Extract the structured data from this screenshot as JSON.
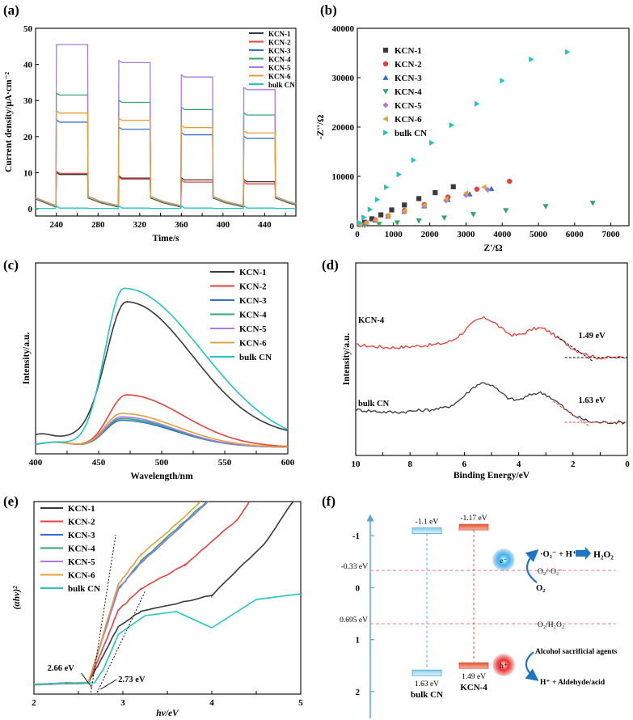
{
  "figure": {
    "panel_labels": [
      "(a)",
      "(b)",
      "(c)",
      "(d)",
      "(e)",
      "(f)"
    ]
  },
  "colors": {
    "KCN-1": "#3a3a3a",
    "KCN-2": "#e8413c",
    "KCN-3": "#2f6fd1",
    "KCN-4": "#2fa86b",
    "KCN-5": "#a77be0",
    "KCN-6": "#e3a03a",
    "bulk CN": "#22c4c4"
  },
  "chart_data": [
    {
      "panel": "(a)",
      "type": "line",
      "title": "",
      "xlabel": "Time/s",
      "ylabel": "Current density/μA·cm⁻²",
      "xlim": [
        220,
        470
      ],
      "ylim": [
        -2,
        50
      ],
      "xticks": [
        "240",
        "280",
        "320",
        "360",
        "400",
        "440"
      ],
      "yticks": [
        "0",
        "10",
        "20",
        "30",
        "40",
        "50"
      ],
      "light_on_intervals": [
        [
          240,
          270
        ],
        [
          300,
          330
        ],
        [
          360,
          390
        ],
        [
          420,
          450
        ]
      ],
      "series": [
        {
          "name": "KCN-1",
          "dark": 0.5,
          "on_values": [
            9.5,
            8.5,
            8.0,
            7.5
          ]
        },
        {
          "name": "KCN-2",
          "dark": 0.8,
          "on_values": [
            9.8,
            8.2,
            7.4,
            6.9
          ]
        },
        {
          "name": "KCN-3",
          "dark": 0.6,
          "on_values": [
            24.0,
            22.0,
            20.5,
            19.5
          ]
        },
        {
          "name": "KCN-4",
          "dark": 0.7,
          "on_values": [
            31.5,
            29.5,
            27.5,
            26.0
          ]
        },
        {
          "name": "KCN-5",
          "dark": 0.9,
          "on_values": [
            45.5,
            40.5,
            36.5,
            33.0
          ]
        },
        {
          "name": "KCN-6",
          "dark": 0.8,
          "on_values": [
            26.5,
            24.5,
            22.5,
            21.0
          ]
        },
        {
          "name": "bulk CN",
          "dark": 0.1,
          "on_values": [
            0.2,
            0.2,
            0.2,
            0.2
          ]
        }
      ]
    },
    {
      "panel": "(b)",
      "type": "scatter",
      "title": "",
      "xlabel": "Z'/Ω",
      "ylabel": "-Z''/Ω",
      "xlim": [
        0,
        7500
      ],
      "ylim": [
        0,
        40000
      ],
      "xticks": [
        "0",
        "1000",
        "2000",
        "3000",
        "4000",
        "5000",
        "6000",
        "7000"
      ],
      "yticks": [
        "0",
        "10000",
        "20000",
        "30000",
        "40000"
      ],
      "series": [
        {
          "name": "KCN-1",
          "marker": "square",
          "x": [
            80,
            200,
            400,
            650,
            950,
            1300,
            1700,
            2150,
            2650
          ],
          "y": [
            250,
            700,
            1400,
            2200,
            3200,
            4200,
            5500,
            6700,
            7900
          ]
        },
        {
          "name": "KCN-2",
          "marker": "circle",
          "x": [
            80,
            250,
            500,
            850,
            1300,
            1850,
            2500,
            3300,
            4200
          ],
          "y": [
            200,
            600,
            1200,
            2000,
            3100,
            4300,
            5800,
            7400,
            9000
          ]
        },
        {
          "name": "KCN-3",
          "marker": "triangle-up",
          "x": [
            80,
            250,
            500,
            850,
            1300,
            1850,
            2500,
            3100,
            3700
          ],
          "y": [
            200,
            550,
            1100,
            1900,
            2900,
            4000,
            5300,
            6400,
            7500
          ]
        },
        {
          "name": "KCN-4",
          "marker": "triangle-down",
          "x": [
            200,
            600,
            1100,
            1700,
            2400,
            3200,
            4100,
            5200,
            6500
          ],
          "y": [
            100,
            300,
            600,
            1000,
            1600,
            2300,
            3100,
            3900,
            4600
          ]
        },
        {
          "name": "KCN-5",
          "marker": "diamond",
          "x": [
            80,
            250,
            500,
            850,
            1300,
            1850,
            2450,
            3000,
            3600
          ],
          "y": [
            200,
            550,
            1100,
            1900,
            2900,
            4000,
            5100,
            6200,
            7300
          ]
        },
        {
          "name": "KCN-6",
          "marker": "triangle-left",
          "x": [
            80,
            250,
            500,
            850,
            1300,
            1850,
            2450,
            3000,
            3500
          ],
          "y": [
            200,
            580,
            1150,
            2000,
            3000,
            4200,
            5400,
            6600,
            7800
          ]
        },
        {
          "name": "bulk CN",
          "marker": "triangle-right",
          "x": [
            60,
            180,
            350,
            550,
            800,
            1150,
            1550,
            2050,
            2600,
            3300,
            4000,
            4800,
            5800
          ],
          "y": [
            600,
            1700,
            3300,
            5300,
            7800,
            10400,
            13300,
            16800,
            20400,
            24700,
            29400,
            33700,
            35200
          ]
        }
      ]
    },
    {
      "panel": "(c)",
      "type": "line",
      "title": "",
      "xlabel": "Wavelength/nm",
      "ylabel": "Intensity/a.u.",
      "xlim": [
        400,
        600
      ],
      "ylim": [
        0,
        1.1
      ],
      "xticks": [
        "400",
        "450",
        "500",
        "550",
        "600"
      ],
      "yticks": [],
      "series": [
        {
          "name": "KCN-1",
          "base": 0.07,
          "peak_x": 472,
          "peak": 0.8,
          "left_width": 16,
          "right_width": 52
        },
        {
          "name": "KCN-2",
          "base": 0.0,
          "peak_x": 472,
          "peak": 0.31,
          "left_width": 14,
          "right_width": 45
        },
        {
          "name": "KCN-3",
          "base": 0.0,
          "peak_x": 468,
          "peak": 0.16,
          "left_width": 13,
          "right_width": 42
        },
        {
          "name": "KCN-4",
          "base": 0.0,
          "peak_x": 468,
          "peak": 0.17,
          "left_width": 13,
          "right_width": 42
        },
        {
          "name": "KCN-5",
          "base": 0.0,
          "peak_x": 468,
          "peak": 0.18,
          "left_width": 13,
          "right_width": 42
        },
        {
          "name": "KCN-6",
          "base": 0.0,
          "peak_x": 468,
          "peak": 0.2,
          "left_width": 13,
          "right_width": 44
        },
        {
          "name": "bulk CN",
          "base": 0.0,
          "peak_x": 470,
          "peak": 0.94,
          "left_width": 15,
          "right_width": 62
        }
      ]
    },
    {
      "panel": "(d)",
      "type": "line",
      "title": "",
      "xlabel": "Binding Energy/eV",
      "ylabel": "Intensity/a.u.",
      "xlim": [
        10,
        0
      ],
      "xticks": [
        "10",
        "8",
        "6",
        "4",
        "2",
        "0"
      ],
      "yticks": [],
      "series": [
        {
          "name": "KCN-4",
          "edge_label": "1.49 eV",
          "edge": 1.49
        },
        {
          "name": "bulk CN",
          "edge_label": "1.63 eV",
          "edge": 1.63
        }
      ]
    },
    {
      "panel": "(e)",
      "type": "line",
      "title": "",
      "xlabel": "hν/eV",
      "ylabel": "(αhν)²",
      "xlim": [
        2,
        5
      ],
      "xticks": [
        "2",
        "3",
        "4",
        "5"
      ],
      "yticks": [],
      "band_gaps": [
        {
          "label": "2.66 eV",
          "value": 2.66
        },
        {
          "label": "2.73 eV",
          "value": 2.73
        }
      ],
      "series": [
        {
          "name": "KCN-1"
        },
        {
          "name": "KCN-2"
        },
        {
          "name": "KCN-3"
        },
        {
          "name": "KCN-4"
        },
        {
          "name": "KCN-5"
        },
        {
          "name": "KCN-6"
        },
        {
          "name": "bulk CN"
        }
      ]
    },
    {
      "panel": "(f)",
      "type": "diagram",
      "yticks": [
        "-1",
        "0",
        "1",
        "2"
      ],
      "levels": [
        {
          "label": "-0.33 eV",
          "potential": -0.33,
          "couple": "O₂/·O₂⁻"
        },
        {
          "label": "0.695 eV",
          "potential": 0.695,
          "couple": "O₂/H₂O₂"
        }
      ],
      "materials": [
        {
          "name": "bulk CN",
          "cb_label": "-1.1 eV",
          "cb": -1.1,
          "vb_label": "1.63 eV",
          "vb": 1.63
        },
        {
          "name": "KCN-4",
          "cb_label": "-1.17 eV",
          "cb": -1.17,
          "vb_label": "1.49 eV",
          "vb": 1.49
        }
      ],
      "electron_label": "e⁻",
      "hole_label": "h⁺",
      "reaction_top": "·O₂⁻ + H⁺",
      "product_top": "H₂O₂",
      "reactant_o2": "O₂",
      "sacrificial_label": "Alcohol sacrificial agents",
      "product_bottom": "H⁺ + Aldehyde/acid"
    }
  ]
}
